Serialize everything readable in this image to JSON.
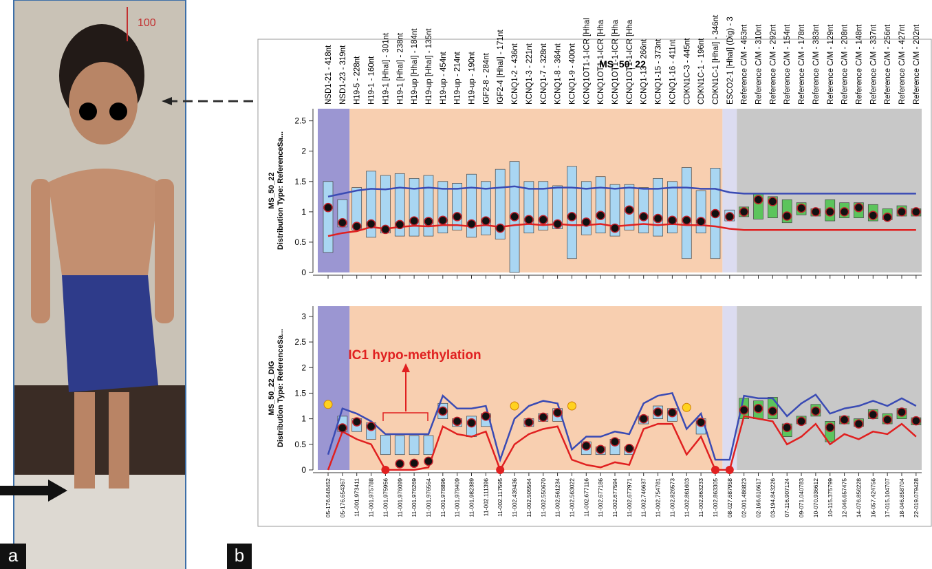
{
  "panel_labels": [
    "a",
    "b"
  ],
  "photo": {
    "ruler_label": "100"
  },
  "annotation": "IC1 hypo-methylation",
  "chart_data": [
    {
      "type": "box",
      "title": "MS_50_22",
      "ylabel": [
        "MS_50_22",
        "Distribution Type: ReferenceSa..."
      ],
      "categories": [
        "NSD1-21 - 418nt",
        "NSD1-23 - 319nt",
        "H19-5 - 228nt",
        "H19-1 - 160nt",
        "H19-1 [HhaI] - 301nt",
        "H19-1 [HhaI] - 238nt",
        "H19-up [HhaI] - 184nt",
        "H19-up [HhaI] - 135nt",
        "H19-up - 454nt",
        "H19-up - 214nt",
        "H19-up - 190nt",
        "IGF2-8 - 284nt",
        "IGF2-4 [HhaI] - 171nt",
        "KCNQ1-2 - 436nt",
        "KCNQ1-3 - 221nt",
        "KCNQ1-7 - 328nt",
        "KCNQ1-8 - 364nt",
        "KCNQ1-9 - 400nt",
        "KCNQ1OT1-1-ICR [HhaI",
        "KCNQ1OT1-1-ICR [Hha",
        "KCNQ1OT1-1-ICR [Hha",
        "KCNQ1OT1-1-ICR [Hha",
        "KCNQ1-13 - 266nt",
        "KCNQ1-15 - 373nt",
        "KCNQ1-16 - 411nt",
        "CDKN1C-3 - 445nt",
        "CDKN1C-1 - 196nt",
        "CDKN1C-1 [HhaI] - 346nt",
        "ESCO2-1 [HhaI] (Dig) - 3",
        "Reference C/M - 463nt",
        "Reference C/M - 310nt",
        "Reference C/M - 292nt",
        "Reference C/M - 154nt",
        "Reference C/M - 178nt",
        "Reference C/M - 383nt",
        "Reference C/M - 129nt",
        "Reference C/M - 208nt",
        "Reference C/M - 148nt",
        "Reference C/M - 337nt",
        "Reference C/M - 256nt",
        "Reference C/M - 427nt",
        "Reference C/M - 202nt"
      ],
      "values": [
        1.07,
        0.82,
        0.76,
        0.8,
        0.71,
        0.79,
        0.85,
        0.84,
        0.86,
        0.92,
        0.8,
        0.85,
        0.73,
        0.92,
        0.87,
        0.87,
        0.8,
        0.92,
        0.83,
        0.94,
        0.73,
        1.03,
        0.92,
        0.89,
        0.86,
        0.86,
        0.84,
        0.97,
        0.92,
        1.0,
        1.2,
        1.17,
        0.93,
        1.06,
        1.0,
        1.0,
        1.0,
        1.07,
        0.94,
        0.91,
        1.0,
        1.0
      ],
      "box_low": [
        0.33,
        0.75,
        0.7,
        0.58,
        0.65,
        0.6,
        0.6,
        0.6,
        0.65,
        0.7,
        0.58,
        0.62,
        0.55,
        0,
        0.65,
        0.7,
        0.72,
        0.23,
        0.62,
        0.65,
        0.6,
        0.7,
        0.65,
        0.6,
        0.65,
        0.23,
        0.65,
        0.23,
        0.85,
        0.92,
        0.88,
        0.9,
        0.82,
        0.95,
        0.93,
        0.85,
        0.9,
        0.9,
        0.85,
        0.87,
        0.93,
        0.93
      ],
      "box_high": [
        1.5,
        1.2,
        1.4,
        1.67,
        1.6,
        1.63,
        1.55,
        1.6,
        1.5,
        1.47,
        1.62,
        1.5,
        1.7,
        1.83,
        1.5,
        1.5,
        1.43,
        1.75,
        1.5,
        1.58,
        1.45,
        1.45,
        1.4,
        1.55,
        1.5,
        1.73,
        1.35,
        1.72,
        1.03,
        1.08,
        1.3,
        1.25,
        1.2,
        1.15,
        1.05,
        1.2,
        1.15,
        1.15,
        1.12,
        1.05,
        1.1,
        1.05
      ],
      "upper": [
        1.25,
        1.3,
        1.35,
        1.38,
        1.37,
        1.4,
        1.38,
        1.4,
        1.38,
        1.38,
        1.4,
        1.38,
        1.4,
        1.42,
        1.38,
        1.38,
        1.4,
        1.4,
        1.38,
        1.4,
        1.38,
        1.4,
        1.38,
        1.38,
        1.4,
        1.4,
        1.38,
        1.38,
        1.32,
        1.3,
        1.3,
        1.3,
        1.3,
        1.3,
        1.3,
        1.3,
        1.3,
        1.3,
        1.3,
        1.3,
        1.3,
        1.3
      ],
      "lower": [
        0.6,
        0.65,
        0.68,
        0.75,
        0.72,
        0.75,
        0.77,
        0.76,
        0.78,
        0.78,
        0.76,
        0.78,
        0.75,
        0.78,
        0.8,
        0.78,
        0.8,
        0.78,
        0.78,
        0.8,
        0.76,
        0.78,
        0.8,
        0.78,
        0.8,
        0.78,
        0.78,
        0.76,
        0.72,
        0.7,
        0.7,
        0.7,
        0.7,
        0.7,
        0.7,
        0.7,
        0.7,
        0.7,
        0.7,
        0.7,
        0.7,
        0.7
      ],
      "box_colors": [
        "#a9d6f2",
        "#5cc45c"
      ],
      "upper_color": "#3a4bb4",
      "lower_color": "#e02020",
      "ylim": [
        0,
        2.7
      ],
      "yticks": [
        0,
        0.5,
        1,
        1.5,
        2,
        2.5
      ]
    },
    {
      "type": "box",
      "ylabel": [
        "MS_50_22_DIG",
        "Distribution Type: ReferenceSa..."
      ],
      "categories": [
        "05-176.648452",
        "05-176.654367",
        "11-001.973411",
        "11-001.975788",
        "11-001.975956",
        "11-001.976099",
        "11-001.976269",
        "11-001.976564",
        "11-001.978896",
        "11-001.979409",
        "11-001.982389",
        "11-002.111396",
        "11-002.117595",
        "11-002.439436",
        "11-002.505564",
        "11-002.550670",
        "11-002.561234",
        "11-002.563022",
        "11-002.677116",
        "11-002.677186",
        "11-002.677594",
        "11-002.677971",
        "11-002.746637",
        "11-002.754781",
        "11-002.826573",
        "11-002.861603",
        "11-002.863233",
        "11-002.863305",
        "08-027.687958",
        "02-001.486823",
        "02-166.616617",
        "03-194.843226",
        "07-116.907124",
        "09-071.040783",
        "10-070.936612",
        "10-115.375799",
        "12-046.657475",
        "14-076.856228",
        "16-057.424756",
        "17-015.104707",
        "18-046.858704",
        "22-019.079428"
      ],
      "values": [
        1.28,
        0.82,
        0.94,
        0.85,
        0,
        0.12,
        0.13,
        0.17,
        1.15,
        0.95,
        0.92,
        1.05,
        0,
        1.25,
        0.93,
        1.03,
        1.12,
        1.25,
        0.47,
        0.4,
        0.55,
        0.42,
        1.0,
        1.13,
        1.12,
        1.22,
        0.93,
        0,
        0,
        1.17,
        1.2,
        1.15,
        0.83,
        0.95,
        1.15,
        0.83,
        0.98,
        0.9,
        1.08,
        0.98,
        1.13,
        0.96
      ],
      "box_low": [
        null,
        0.75,
        0.75,
        0.6,
        0.3,
        0.3,
        0.3,
        0.3,
        1.0,
        0.85,
        0.65,
        0.85,
        null,
        null,
        0.85,
        0.95,
        0.95,
        null,
        0.3,
        0.3,
        0.3,
        0.3,
        0.9,
        1.0,
        0.95,
        null,
        0.7,
        null,
        null,
        1.0,
        1.0,
        1.0,
        0.65,
        0.9,
        1.05,
        0.55,
        0.9,
        0.85,
        1.0,
        0.9,
        1.0,
        0.88
      ],
      "box_high": [
        null,
        1.05,
        1.0,
        0.92,
        0.68,
        0.67,
        0.67,
        0.67,
        1.3,
        1.0,
        1.05,
        1.1,
        null,
        null,
        1.0,
        1.1,
        1.2,
        null,
        0.55,
        0.45,
        0.6,
        0.45,
        1.05,
        1.25,
        1.2,
        null,
        1.0,
        null,
        null,
        1.4,
        1.35,
        1.42,
        0.9,
        1.05,
        1.28,
        0.95,
        1.05,
        1.0,
        1.18,
        1.1,
        1.2,
        1.02
      ],
      "upper": [
        0.3,
        1.2,
        1.1,
        0.95,
        0.7,
        0.7,
        0.7,
        0.7,
        1.45,
        1.2,
        1.2,
        1.25,
        0.2,
        1.0,
        1.25,
        1.35,
        1.3,
        0.4,
        0.65,
        0.65,
        0.75,
        0.7,
        1.3,
        1.45,
        1.5,
        0.8,
        1.1,
        0.2,
        0.2,
        1.45,
        1.4,
        1.4,
        1.05,
        1.3,
        1.47,
        1.1,
        1.2,
        1.25,
        1.35,
        1.25,
        1.4,
        1.25
      ],
      "lower": [
        0,
        0.75,
        0.6,
        0.5,
        0,
        0,
        0,
        0.05,
        0.85,
        0.7,
        0.65,
        0.75,
        0,
        0.5,
        0.7,
        0.8,
        0.85,
        0.2,
        0.1,
        0.05,
        0.15,
        0.1,
        0.8,
        0.9,
        0.9,
        0.3,
        0.65,
        0,
        0,
        1.05,
        1.0,
        0.95,
        0.5,
        0.65,
        0.9,
        0.5,
        0.7,
        0.6,
        0.75,
        0.7,
        0.9,
        0.65
      ],
      "box_colors": [
        "#a9d6f2",
        "#5cc45c"
      ],
      "upper_color": "#3a4bb4",
      "lower_color": "#e02020",
      "ylim": [
        0,
        3.2
      ],
      "yticks": [
        0,
        0.5,
        1,
        1.5,
        2,
        2.5,
        3
      ]
    }
  ]
}
